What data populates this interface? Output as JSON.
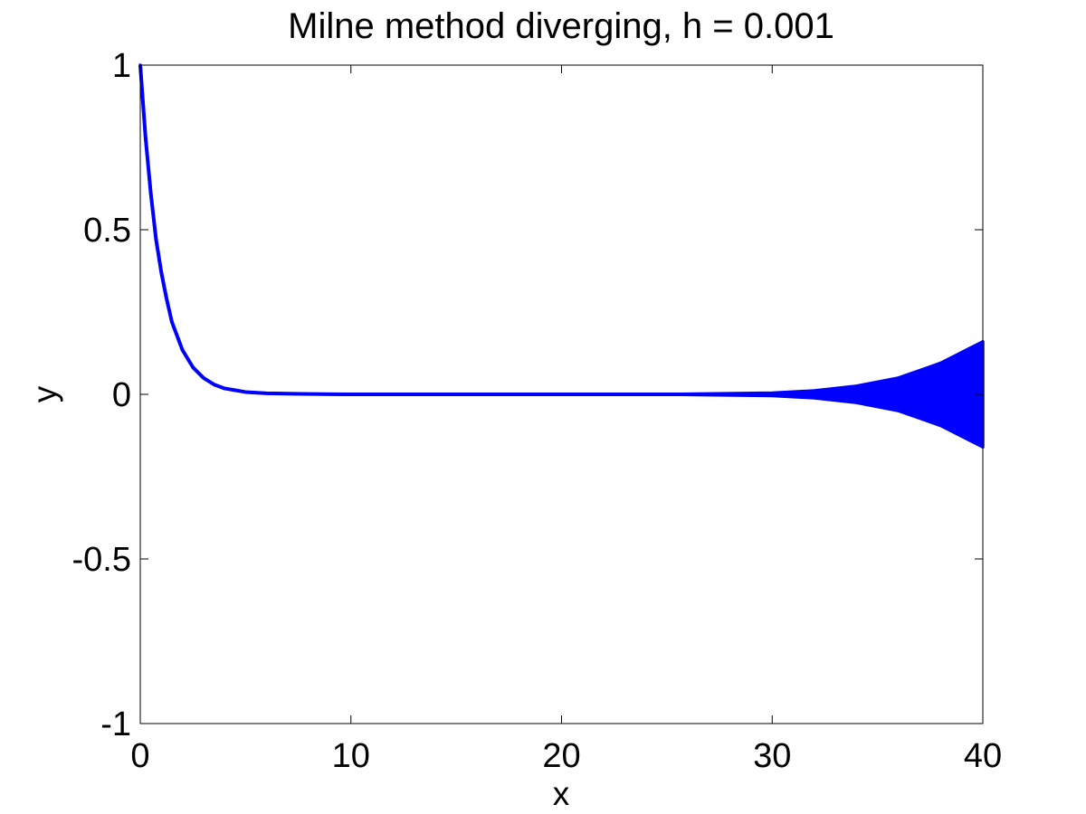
{
  "chart_data": {
    "type": "line",
    "title": "Milne method diverging, h = 0.001",
    "xlabel": "x",
    "ylabel": "y",
    "xlim": [
      0,
      40
    ],
    "ylim": [
      -1,
      1
    ],
    "grid": false,
    "x_ticks": [
      0,
      10,
      20,
      30,
      40
    ],
    "x_tick_labels": [
      "0",
      "10",
      "20",
      "30",
      "40"
    ],
    "y_ticks": [
      -1,
      -0.5,
      0,
      0.5,
      1
    ],
    "y_tick_labels": [
      "-1",
      "-0.5",
      "0",
      "0.5",
      "1"
    ],
    "series": [
      {
        "color": "#0000ff",
        "description_points": {
          "x": [
            0,
            0.25,
            0.5,
            0.75,
            1,
            1.25,
            1.5,
            2,
            2.5,
            3,
            3.5,
            4,
            5,
            6,
            8,
            10,
            15,
            20,
            25,
            30,
            32,
            34,
            36,
            38,
            40
          ],
          "y_upper": [
            1.0,
            0.78,
            0.61,
            0.47,
            0.37,
            0.29,
            0.22,
            0.135,
            0.082,
            0.05,
            0.03,
            0.018,
            0.007,
            0.003,
            0.001,
            0.0,
            0.0,
            0.0,
            0.0,
            0.004,
            0.011,
            0.025,
            0.05,
            0.095,
            0.16
          ],
          "y_lower": [
            1.0,
            0.78,
            0.61,
            0.47,
            0.37,
            0.29,
            0.22,
            0.135,
            0.082,
            0.05,
            0.03,
            0.018,
            0.007,
            0.003,
            0.001,
            0.0,
            0.0,
            0.0,
            0.0,
            -0.004,
            -0.011,
            -0.025,
            -0.05,
            -0.095,
            -0.16
          ]
        }
      }
    ]
  }
}
